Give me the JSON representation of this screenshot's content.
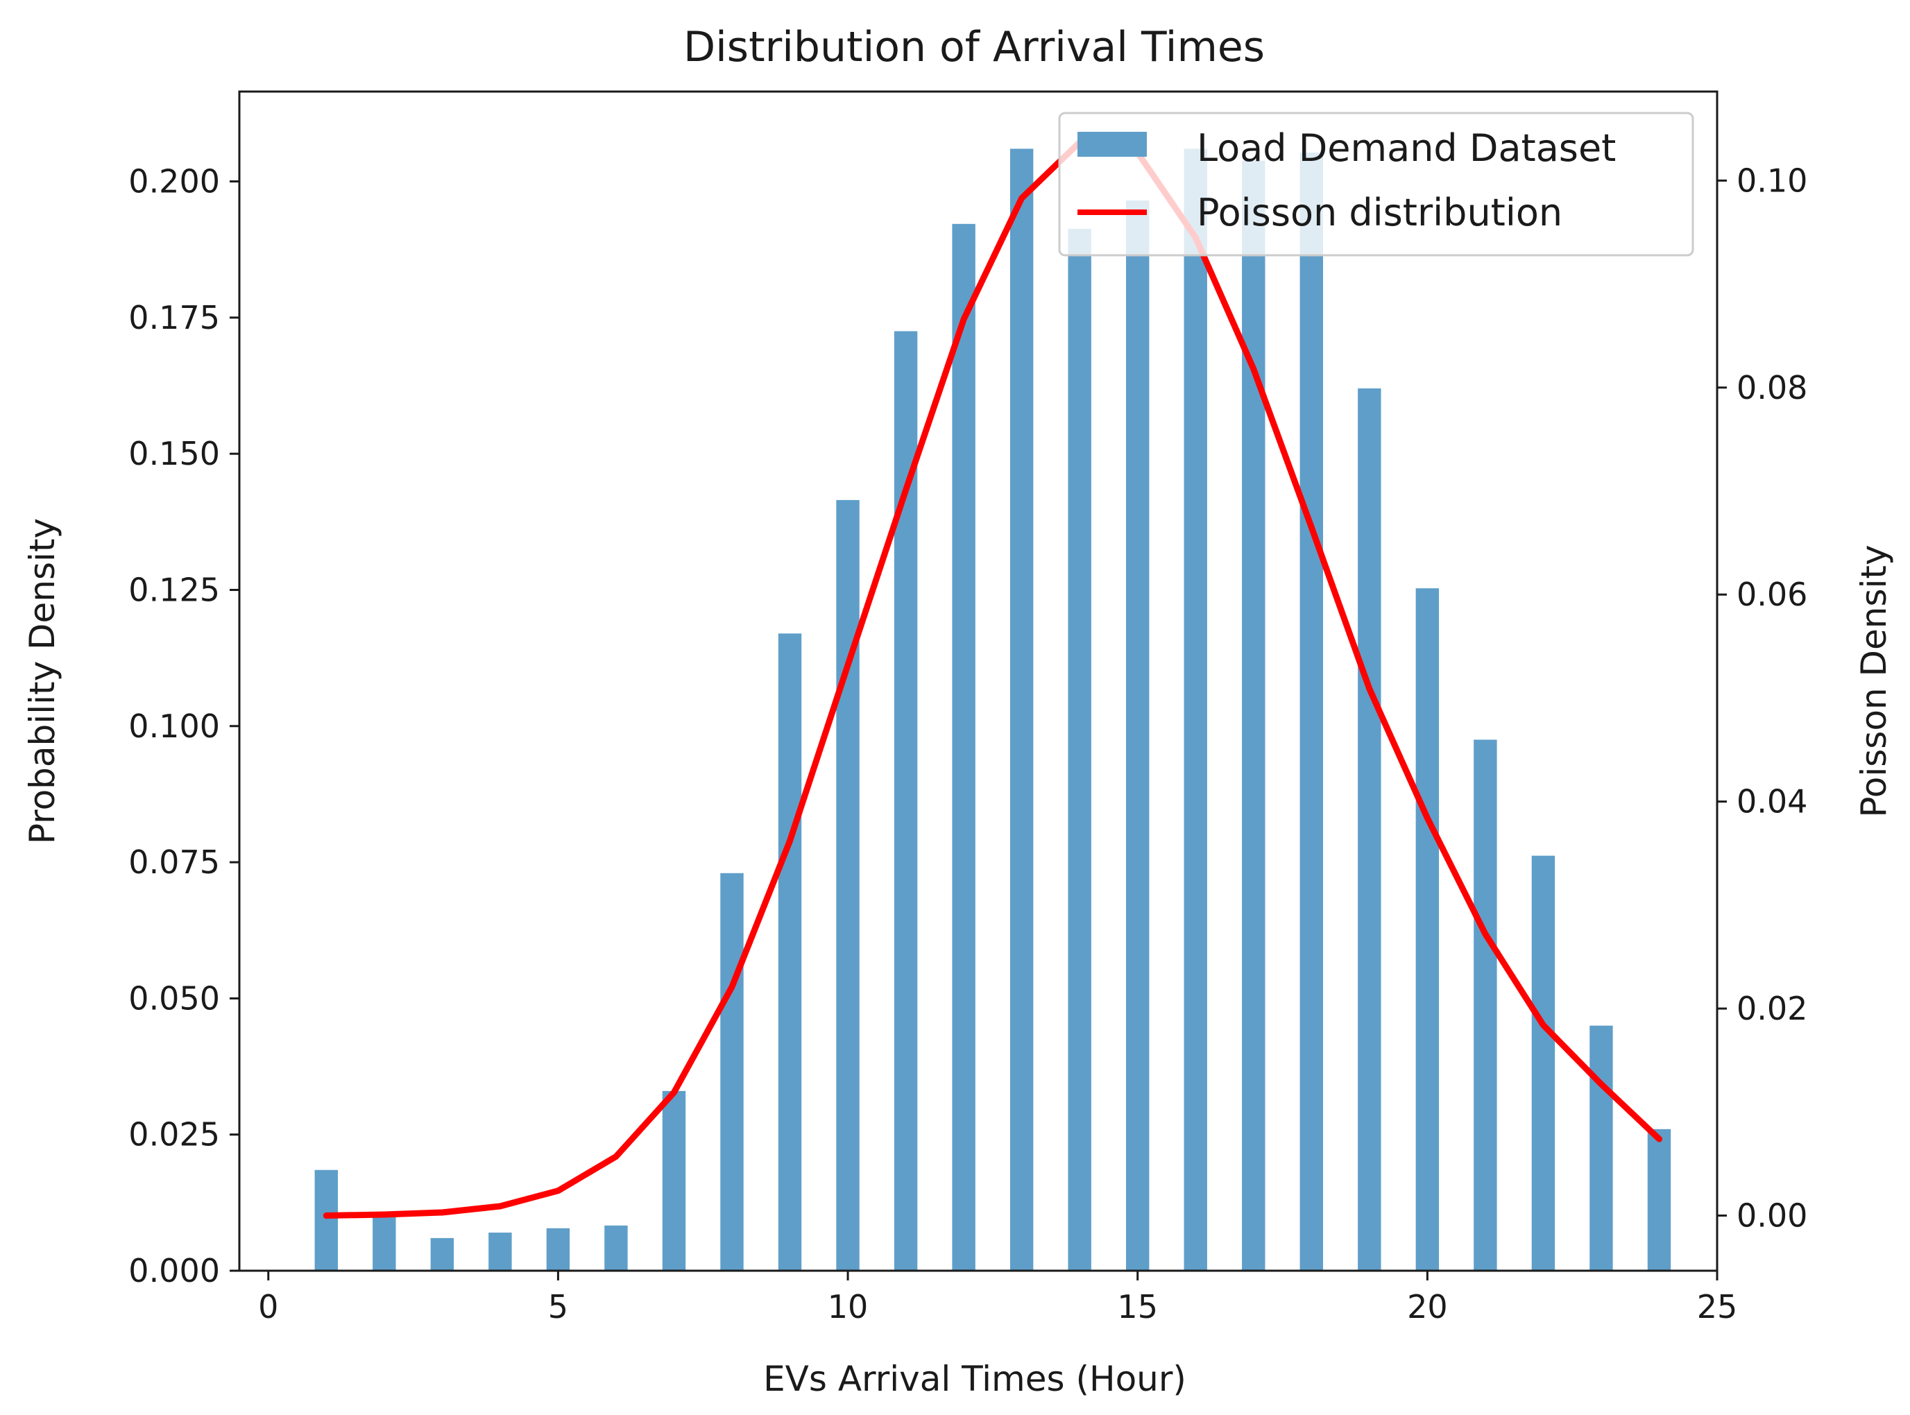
{
  "chart_data": {
    "type": "bar",
    "title": "Distribution of Arrival Times",
    "xlabel": "EVs Arrival Times (Hour)",
    "ylabel": "Probability Density",
    "ylabel_right": "Poisson Density",
    "xlim": [
      -0.5,
      25
    ],
    "ylim": [
      0,
      0.2165
    ],
    "ylim_right": [
      -0.00533,
      0.1086
    ],
    "x_ticks": [
      0,
      5,
      10,
      15,
      20,
      25
    ],
    "x_tick_labels": [
      "0",
      "5",
      "10",
      "15",
      "20",
      "25"
    ],
    "y_ticks": [
      0,
      0.025,
      0.05,
      0.075,
      0.1,
      0.125,
      0.15,
      0.175,
      0.2
    ],
    "y_tick_labels": [
      "0.000",
      "0.025",
      "0.050",
      "0.075",
      "0.100",
      "0.125",
      "0.150",
      "0.175",
      "0.200"
    ],
    "y_right_ticks": [
      0,
      0.02,
      0.04,
      0.06,
      0.08,
      0.1
    ],
    "y_right_tick_labels": [
      "0.00",
      "0.02",
      "0.04",
      "0.06",
      "0.08",
      "0.10"
    ],
    "bar_width_hours": 0.4,
    "bars": {
      "name": "Load Demand Dataset",
      "color": "#5f9ec9",
      "x": [
        1,
        2,
        3,
        4,
        5,
        6,
        7,
        8,
        9,
        10,
        11,
        12,
        13,
        14,
        15,
        16,
        17,
        18,
        19,
        20,
        21,
        22,
        23,
        24
      ],
      "values": [
        0.0185,
        0.0105,
        0.006,
        0.007,
        0.0078,
        0.0083,
        0.033,
        0.073,
        0.117,
        0.1415,
        0.1725,
        0.1922,
        0.206,
        0.1913,
        0.1965,
        0.206,
        0.2038,
        0.2053,
        0.162,
        0.1253,
        0.0975,
        0.0762,
        0.045,
        0.026
      ]
    },
    "series": [
      {
        "name": "Poisson distribution",
        "color": "#ff0000",
        "axis": "right",
        "x": [
          1,
          2,
          3,
          4,
          5,
          6,
          7,
          8,
          9,
          10,
          11,
          12,
          13,
          14,
          15,
          16,
          17,
          18,
          19,
          20,
          21,
          22,
          23,
          24
        ],
        "values": [
          0.0,
          0.0001,
          0.0003,
          0.0009,
          0.0024,
          0.0057,
          0.0119,
          0.0221,
          0.0362,
          0.0532,
          0.0701,
          0.0866,
          0.0983,
          0.1037,
          0.1027,
          0.0945,
          0.0818,
          0.0665,
          0.0509,
          0.0384,
          0.0272,
          0.0184,
          0.0127,
          0.0074
        ]
      }
    ],
    "legend": {
      "position": "top-right",
      "entries": [
        "Load Demand Dataset",
        "Poisson distribution"
      ]
    }
  }
}
